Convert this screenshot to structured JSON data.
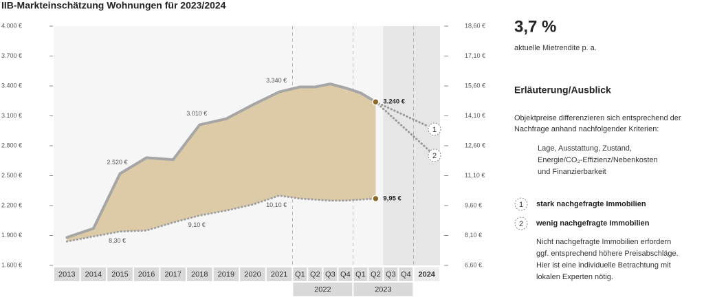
{
  "chart_data": {
    "type": "line",
    "title": "IIB-Markteinschätzung Wohnungen für 2023/2024",
    "categories": [
      "2013",
      "2014",
      "2015",
      "2016",
      "2017",
      "2018",
      "2019",
      "2020",
      "2021",
      "Q1",
      "Q2",
      "Q3",
      "Q4",
      "Q1",
      "Q2",
      "Q3",
      "Q4",
      "2024"
    ],
    "category_groups": [
      "2022",
      "2023"
    ],
    "series": [
      {
        "color": "#a6a6a6",
        "axis": "y",
        "values": [
          1880,
          1970,
          2520,
          2680,
          2660,
          3010,
          3070,
          3210,
          3340,
          3390,
          3390,
          3420,
          3380,
          3330,
          3240,
          null,
          null,
          null
        ],
        "value_labels": [
          null,
          null,
          "2.520 €",
          null,
          null,
          "3.010 €",
          null,
          null,
          "3.340 €",
          null,
          null,
          null,
          null,
          null,
          "3.240 €",
          null,
          null,
          null
        ]
      },
      {
        "color": "#a0a0a0",
        "axis": "y2",
        "style": "dotted",
        "values": [
          7.8,
          8.05,
          8.3,
          8.35,
          8.75,
          9.1,
          9.35,
          9.65,
          10.1,
          9.95,
          9.9,
          9.85,
          9.85,
          9.9,
          9.95,
          null,
          null,
          null
        ],
        "value_labels": [
          null,
          null,
          "8,30 €",
          null,
          null,
          "9,10 €",
          null,
          null,
          "10,10 €",
          null,
          null,
          null,
          null,
          null,
          "9,95 €",
          null,
          null,
          null
        ]
      }
    ],
    "area_color": "#dccba6",
    "marker_color": "#8b6a2a",
    "ylim": [
      1600,
      4000
    ],
    "yticks": [
      {
        "value": 1600,
        "label": "1.600 €"
      },
      {
        "value": 1900,
        "label": "1.900 €"
      },
      {
        "value": 2200,
        "label": "2.200 €"
      },
      {
        "value": 2500,
        "label": "2.500 €"
      },
      {
        "value": 2800,
        "label": "2.800 €"
      },
      {
        "value": 3100,
        "label": "3.100 €"
      },
      {
        "value": 3400,
        "label": "3.400 €"
      },
      {
        "value": 3700,
        "label": "3.700 €"
      },
      {
        "value": 4000,
        "label": "4.000 €"
      }
    ],
    "y2lim": [
      6.6,
      18.6
    ],
    "y2ticks": [
      {
        "value": 6.6,
        "label": "6,60 €"
      },
      {
        "value": 8.1,
        "label": "8,10 €"
      },
      {
        "value": 9.6,
        "label": "9,60 €"
      },
      {
        "value": 11.1,
        "label": "11,10 €"
      },
      {
        "value": 12.6,
        "label": "12,60 €"
      },
      {
        "value": 14.1,
        "label": "14,10 €"
      },
      {
        "value": 15.6,
        "label": "15,60 €"
      },
      {
        "value": 17.1,
        "label": "17,10 €"
      },
      {
        "value": 18.6,
        "label": "18,60 €"
      }
    ]
  },
  "panel": {
    "kpi_value": "3,7 %",
    "kpi_label": "aktuelle Mietrendite p. a.",
    "heading": "Erläuterung/Ausblick",
    "intro": [
      "Objektpreise differenzieren sich entsprechend der",
      "Nachfrage anhand nachfolgender Kriterien:"
    ],
    "criteria": [
      "Lage, Ausstattung, Zustand,",
      "Energie/CO₂-Effizienz/Nebenkosten",
      "und Finanzierbarkeit"
    ],
    "legend": [
      {
        "marker": "1",
        "label": "stark nachgefragte Immobilien"
      },
      {
        "marker": "2",
        "label": "wenig nachgefragte Immobilien"
      }
    ],
    "note": [
      "Nicht nachgefragte Immobilien erfordern",
      "ggf. entsprechend höhere Preisabschläge.",
      "Hier ist eine individuelle Betrachtung mit",
      "lokalen Experten nötig."
    ]
  }
}
